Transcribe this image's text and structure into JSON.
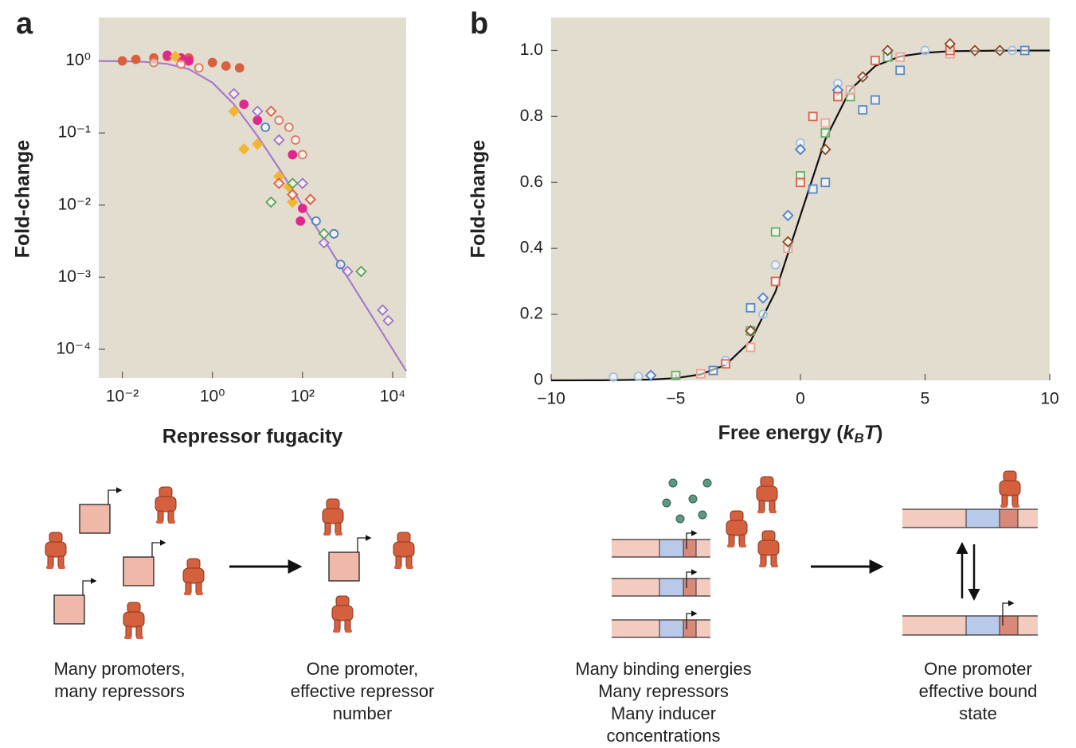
{
  "chart_data": [
    {
      "type": "scatter",
      "panel_label": "a",
      "xlabel": "Repressor fugacity",
      "ylabel": "Fold-change",
      "xscale": "log",
      "yscale": "log",
      "background": "#e3ddd0",
      "xlim": [
        0.003,
        20000
      ],
      "ylim": [
        4e-05,
        4
      ],
      "xticks": [
        {
          "value": 0.01,
          "label": "10⁻²"
        },
        {
          "value": 1,
          "label": "10⁰"
        },
        {
          "value": 100,
          "label": "10²"
        },
        {
          "value": 10000,
          "label": "10⁴"
        }
      ],
      "yticks": [
        {
          "value": 1,
          "label": "10⁰"
        },
        {
          "value": 0.1,
          "label": "10⁻¹"
        },
        {
          "value": 0.01,
          "label": "10⁻²"
        },
        {
          "value": 0.001,
          "label": "10⁻³"
        },
        {
          "value": 0.0001,
          "label": "10⁻⁴"
        }
      ],
      "fit": {
        "color": "#a57bc9",
        "x": [
          0.003,
          0.01,
          0.03,
          0.1,
          0.3,
          1,
          3,
          10,
          30,
          100,
          300,
          1000,
          3000,
          10000,
          20000
        ],
        "values": [
          0.997,
          0.99,
          0.971,
          0.909,
          0.769,
          0.5,
          0.25,
          0.0909,
          0.0323,
          0.0099,
          0.00332,
          0.000999,
          0.000333,
          0.0001,
          5e-05
        ]
      },
      "series": [
        {
          "color": "#d9603f",
          "marker": "circle",
          "filled": true,
          "x": [
            0.01,
            0.02,
            0.05,
            0.1,
            0.3,
            1,
            2,
            4
          ],
          "values": [
            1.0,
            1.05,
            1.1,
            1.15,
            1.1,
            0.95,
            0.85,
            0.8
          ]
        },
        {
          "color": "#e0288c",
          "marker": "circle",
          "filled": true,
          "x": [
            0.1,
            0.2,
            0.3,
            5,
            10,
            60,
            100,
            90
          ],
          "values": [
            1.2,
            1.1,
            1.0,
            0.25,
            0.15,
            0.05,
            0.009,
            0.006
          ]
        },
        {
          "color": "#f3b534",
          "marker": "diamond",
          "filled": true,
          "x": [
            0.15,
            3,
            5,
            10,
            30,
            50,
            60
          ],
          "values": [
            1.15,
            0.2,
            0.06,
            0.07,
            0.025,
            0.018,
            0.011
          ]
        },
        {
          "color": "#e07860",
          "marker": "circle",
          "filled": false,
          "x": [
            0.05,
            0.2,
            0.5,
            30,
            50,
            70,
            100
          ],
          "values": [
            0.95,
            0.9,
            0.8,
            0.15,
            0.12,
            0.08,
            0.05
          ]
        },
        {
          "color": "#e05a40",
          "marker": "diamond",
          "filled": false,
          "x": [
            20,
            30,
            60,
            150
          ],
          "values": [
            0.2,
            0.02,
            0.014,
            0.012
          ]
        },
        {
          "color": "#a070c8",
          "marker": "diamond",
          "filled": false,
          "x": [
            3,
            10,
            30,
            100,
            300,
            1000,
            6000,
            8000
          ],
          "values": [
            0.35,
            0.2,
            0.08,
            0.02,
            0.003,
            0.0012,
            0.00035,
            0.00025
          ]
        },
        {
          "color": "#58a058",
          "marker": "diamond",
          "filled": false,
          "x": [
            20,
            60,
            300,
            2000
          ],
          "values": [
            0.011,
            0.02,
            0.004,
            0.0012
          ]
        },
        {
          "color": "#4a7fc0",
          "marker": "circle",
          "filled": false,
          "x": [
            15,
            200,
            500,
            700
          ],
          "values": [
            0.12,
            0.006,
            0.004,
            0.0015
          ]
        }
      ]
    },
    {
      "type": "scatter",
      "panel_label": "b",
      "xlabel_parts": [
        "Free energy (",
        "k",
        "B",
        "T",
        ")"
      ],
      "ylabel": "Fold-change",
      "xscale": "linear",
      "yscale": "linear",
      "background": "#e3ddd0",
      "xlim": [
        -10,
        10
      ],
      "ylim": [
        0,
        1.1
      ],
      "xticks": [
        {
          "value": -10,
          "label": "−10"
        },
        {
          "value": -5,
          "label": "−5"
        },
        0,
        5,
        10
      ],
      "yticks": [
        0,
        0.2,
        0.4,
        0.6,
        0.8,
        {
          "value": 1,
          "label": "1.0"
        }
      ],
      "fit": {
        "color": "#111111",
        "x": [
          -10,
          -8,
          -6,
          -5,
          -4,
          -3,
          -2,
          -1,
          0,
          1,
          2,
          3,
          4,
          5,
          6,
          8,
          10
        ],
        "values": [
          5e-05,
          0.0003,
          0.0025,
          0.0067,
          0.018,
          0.047,
          0.119,
          0.269,
          0.5,
          0.731,
          0.881,
          0.953,
          0.982,
          0.993,
          0.998,
          0.9997,
          1.0
        ]
      },
      "series": [
        {
          "color": "#9dbfe6",
          "marker": "circle",
          "filled": false,
          "x": [
            -7.5,
            -6.5,
            -3,
            -1.5,
            -1,
            0,
            1.5,
            3.5,
            5,
            8.5
          ],
          "values": [
            0.01,
            0.012,
            0.06,
            0.2,
            0.35,
            0.72,
            0.9,
            0.99,
            1.0,
            1.0
          ]
        },
        {
          "color": "#5588cc",
          "marker": "square",
          "filled": false,
          "x": [
            -3.5,
            -2,
            -1,
            0.5,
            1,
            2.5,
            3,
            4,
            9
          ],
          "values": [
            0.03,
            0.22,
            0.3,
            0.58,
            0.6,
            0.82,
            0.85,
            0.94,
            1.0
          ]
        },
        {
          "color": "#4a7fd0",
          "marker": "diamond",
          "filled": false,
          "x": [
            -6,
            -1.5,
            -0.5,
            0,
            1.5
          ],
          "values": [
            0.015,
            0.25,
            0.5,
            0.7,
            0.88
          ]
        },
        {
          "color": "#62b066",
          "marker": "square",
          "filled": false,
          "x": [
            -5,
            -2,
            -1,
            0,
            1,
            2,
            3.5
          ],
          "values": [
            0.015,
            0.15,
            0.45,
            0.62,
            0.75,
            0.86,
            0.98
          ]
        },
        {
          "color": "#f0a090",
          "marker": "square",
          "filled": false,
          "x": [
            -4,
            -2,
            -0.5,
            1,
            2,
            4,
            6
          ],
          "values": [
            0.02,
            0.1,
            0.4,
            0.78,
            0.88,
            0.98,
            0.99
          ]
        },
        {
          "color": "#e06048",
          "marker": "square",
          "filled": false,
          "x": [
            -3,
            -1,
            0,
            0.5,
            1.5,
            3,
            6
          ],
          "values": [
            0.05,
            0.3,
            0.6,
            0.8,
            0.86,
            0.97,
            1.0
          ]
        },
        {
          "color": "#8b4a24",
          "marker": "diamond",
          "filled": false,
          "x": [
            -2,
            -0.5,
            1,
            2.5,
            3.5,
            6,
            7,
            8
          ],
          "values": [
            0.15,
            0.42,
            0.7,
            0.92,
            1.0,
            1.02,
            1.0,
            1.0
          ]
        }
      ]
    }
  ],
  "diagrams": {
    "captions": [
      [
        "Many promoters,",
        "many repressors"
      ],
      [
        "One promoter,",
        "effective repressor",
        "number"
      ],
      [
        "Many binding energies",
        "Many repressors",
        "Many inducer",
        "concentrations"
      ],
      [
        "One promoter",
        "effective bound",
        "state"
      ]
    ]
  }
}
